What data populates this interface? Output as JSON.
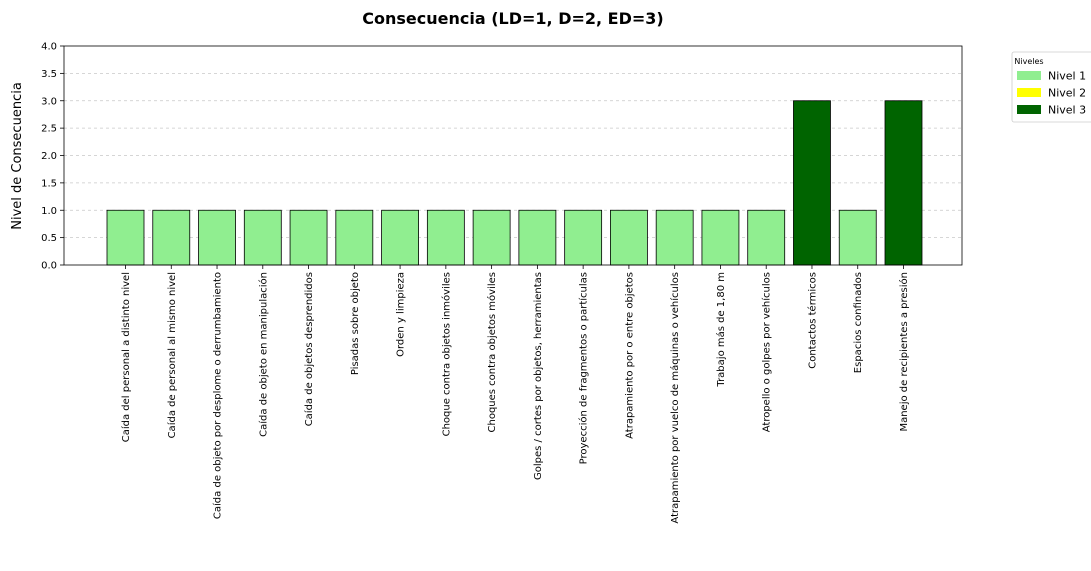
{
  "chart_data": {
    "type": "bar",
    "title": "Consecuencia (LD=1, D=2, ED=3)",
    "xlabel": "",
    "ylabel": "Nivel de Consecuencia",
    "ylim": [
      0,
      4
    ],
    "yticks": [
      "0.0",
      "0.5",
      "1.0",
      "1.5",
      "2.0",
      "2.5",
      "3.0",
      "3.5",
      "4.0"
    ],
    "grid": "horizontal dashed",
    "categories": [
      "Caída del personal a distinto nivel",
      "Caída de personal al mismo nivel",
      "Caída de objeto por desplome o derrumbamiento",
      "Caída de objeto en manipulación",
      "Caída de objetos desprendidos",
      "Pisadas sobre objeto",
      "Orden y limpieza",
      "Choque contra objetos inmóviles",
      "Choques contra objetos móviles",
      "Golpes / cortes por objetos, herramientas",
      "Proyección de fragmentos o partículas",
      "Atrapamiento por o entre objetos",
      "Atrapamiento por vuelco de máquinas o vehículos",
      "Trabajo más de 1,80 m",
      "Atropello o golpes por vehículos",
      "Contactos térmicos",
      "Espacios confinados",
      "Manejo de recipientes a presión"
    ],
    "values": [
      1,
      1,
      1,
      1,
      1,
      1,
      1,
      1,
      1,
      1,
      1,
      1,
      1,
      1,
      1,
      3,
      1,
      3
    ],
    "legend": {
      "title": "Niveles",
      "placement": "outside right",
      "entries": [
        {
          "label": "Nivel 1",
          "color": "#90ee90"
        },
        {
          "label": "Nivel 2",
          "color": "#ffff00"
        },
        {
          "label": "Nivel 3",
          "color": "#006400"
        }
      ]
    }
  }
}
